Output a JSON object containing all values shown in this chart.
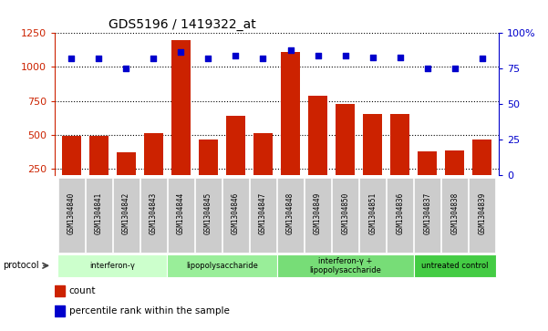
{
  "title": "GDS5196 / 1419322_at",
  "samples": [
    "GSM1304840",
    "GSM1304841",
    "GSM1304842",
    "GSM1304843",
    "GSM1304844",
    "GSM1304845",
    "GSM1304846",
    "GSM1304847",
    "GSM1304848",
    "GSM1304849",
    "GSM1304850",
    "GSM1304851",
    "GSM1304836",
    "GSM1304837",
    "GSM1304838",
    "GSM1304839"
  ],
  "counts": [
    490,
    495,
    370,
    510,
    1195,
    465,
    640,
    510,
    1110,
    785,
    730,
    650,
    650,
    380,
    385,
    465
  ],
  "percentile_ranks": [
    82,
    82,
    75,
    82,
    87,
    82,
    84,
    82,
    88,
    84,
    84,
    83,
    83,
    75,
    75,
    82
  ],
  "groups": [
    {
      "label": "interferon-γ",
      "start": 0,
      "end": 4,
      "color": "#ccffcc"
    },
    {
      "label": "lipopolysaccharide",
      "start": 4,
      "end": 8,
      "color": "#99ee99"
    },
    {
      "label": "interferon-γ +\nlipopolysaccharide",
      "start": 8,
      "end": 13,
      "color": "#77dd77"
    },
    {
      "label": "untreated control",
      "start": 13,
      "end": 16,
      "color": "#44cc44"
    }
  ],
  "ylim_left": [
    200,
    1250
  ],
  "ylim_right": [
    0,
    100
  ],
  "yticks_left": [
    250,
    500,
    750,
    1000,
    1250
  ],
  "yticks_right": [
    0,
    25,
    50,
    75,
    100
  ],
  "bar_color": "#cc2200",
  "dot_color": "#0000cc",
  "bg_color": "#cccccc",
  "plot_bg": "#ffffff"
}
